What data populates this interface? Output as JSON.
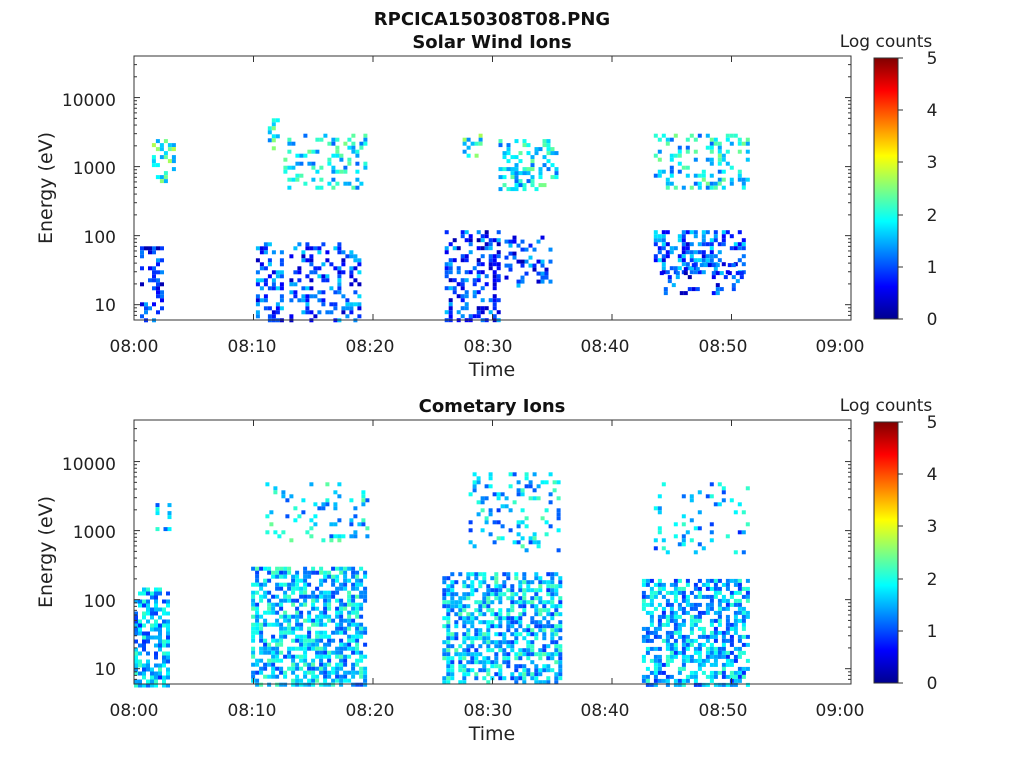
{
  "figure_title": "RPCICA150308T08.PNG",
  "chart_data": [
    {
      "type": "heatmap",
      "title": "Solar Wind Ions",
      "xlabel": "Time",
      "ylabel": "Energy (eV)",
      "xlim": [
        "08:00",
        "09:00"
      ],
      "xticks": [
        "08:00",
        "08:10",
        "08:20",
        "08:30",
        "08:40",
        "08:50",
        "09:00"
      ],
      "ylim": [
        6,
        40000
      ],
      "yscale": "log",
      "yticks": [
        "10",
        "100",
        "1000",
        "10000"
      ],
      "colorbar": {
        "label": "Log counts",
        "range": [
          0,
          5
        ],
        "ticks": [
          "0",
          "1",
          "2",
          "3",
          "4",
          "5"
        ],
        "colormap": "jet"
      },
      "clusters": [
        {
          "t": [
            0.5,
            2.3
          ],
          "e": [
            6,
            70
          ],
          "level": 0.8,
          "density": 0.35
        },
        {
          "t": [
            1.5,
            3.5
          ],
          "e": [
            600,
            2500
          ],
          "level": 2.1,
          "density": 0.5
        },
        {
          "t": [
            10.2,
            12.5
          ],
          "e": [
            6,
            80
          ],
          "level": 1.0,
          "density": 0.4
        },
        {
          "t": [
            11.2,
            12.2
          ],
          "e": [
            1800,
            5000
          ],
          "level": 1.9,
          "density": 0.5
        },
        {
          "t": [
            12.5,
            19.5
          ],
          "e": [
            500,
            3000
          ],
          "level": 1.8,
          "density": 0.3
        },
        {
          "t": [
            13.0,
            19.0
          ],
          "e": [
            6,
            80
          ],
          "level": 1.0,
          "density": 0.35
        },
        {
          "t": [
            26.0,
            30.5
          ],
          "e": [
            6,
            120
          ],
          "level": 0.9,
          "density": 0.45
        },
        {
          "t": [
            27.5,
            29.0
          ],
          "e": [
            1500,
            3000
          ],
          "level": 2.0,
          "density": 0.45
        },
        {
          "t": [
            30.5,
            35.5
          ],
          "e": [
            500,
            2500
          ],
          "level": 1.8,
          "density": 0.4
        },
        {
          "t": [
            31.0,
            35.0
          ],
          "e": [
            20,
            100
          ],
          "level": 0.9,
          "density": 0.3
        },
        {
          "t": [
            43.5,
            51.5
          ],
          "e": [
            500,
            3000
          ],
          "level": 1.8,
          "density": 0.35
        },
        {
          "t": [
            43.5,
            51.0
          ],
          "e": [
            30,
            120
          ],
          "level": 1.1,
          "density": 0.45
        },
        {
          "t": [
            44.0,
            51.0
          ],
          "e": [
            15,
            40
          ],
          "level": 0.9,
          "density": 0.25
        }
      ]
    },
    {
      "type": "heatmap",
      "title": "Cometary Ions",
      "xlabel": "Time",
      "ylabel": "Energy (eV)",
      "xlim": [
        "08:00",
        "09:00"
      ],
      "xticks": [
        "08:00",
        "08:10",
        "08:20",
        "08:30",
        "08:40",
        "08:50",
        "09:00"
      ],
      "ylim": [
        6,
        40000
      ],
      "yscale": "log",
      "yticks": [
        "10",
        "100",
        "1000",
        "10000"
      ],
      "colorbar": {
        "label": "Log counts",
        "range": [
          0,
          5
        ],
        "ticks": [
          "0",
          "1",
          "2",
          "3",
          "4",
          "5"
        ],
        "colormap": "jet"
      },
      "clusters": [
        {
          "t": [
            0.0,
            2.8
          ],
          "e": [
            6,
            150
          ],
          "level": 1.5,
          "density": 0.6
        },
        {
          "t": [
            1.8,
            3.3
          ],
          "e": [
            900,
            2500
          ],
          "level": 1.7,
          "density": 0.4
        },
        {
          "t": [
            9.8,
            19.3
          ],
          "e": [
            6,
            300
          ],
          "level": 1.6,
          "density": 0.6
        },
        {
          "t": [
            11.0,
            19.5
          ],
          "e": [
            700,
            5000
          ],
          "level": 1.7,
          "density": 0.15
        },
        {
          "t": [
            25.8,
            35.8
          ],
          "e": [
            6,
            250
          ],
          "level": 1.6,
          "density": 0.6
        },
        {
          "t": [
            28.0,
            35.5
          ],
          "e": [
            500,
            7000
          ],
          "level": 1.6,
          "density": 0.2
        },
        {
          "t": [
            42.5,
            51.5
          ],
          "e": [
            6,
            200
          ],
          "level": 1.5,
          "density": 0.6
        },
        {
          "t": [
            43.5,
            51.5
          ],
          "e": [
            500,
            5000
          ],
          "level": 1.5,
          "density": 0.15
        }
      ]
    }
  ]
}
